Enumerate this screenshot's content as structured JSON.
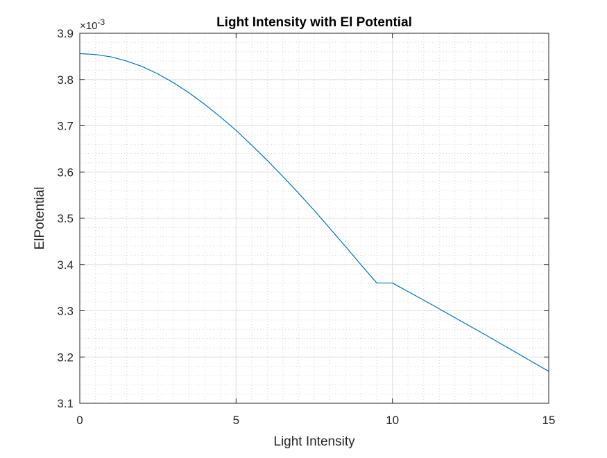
{
  "chart_data": {
    "type": "line",
    "title": "Light Intensity with El Potential",
    "xlabel": "Light Intensity",
    "ylabel": "ElPotential",
    "xlim": [
      0,
      15
    ],
    "ylim": [
      0.0031,
      0.0039
    ],
    "x_ticks": [
      0,
      5,
      10,
      15
    ],
    "x_tick_labels": [
      "0",
      "5",
      "10",
      "15"
    ],
    "y_ticks": [
      0.0031,
      0.0032,
      0.0033,
      0.0034,
      0.0035,
      0.0036,
      0.0037,
      0.0038,
      0.0039
    ],
    "y_tick_labels": [
      "3.1",
      "3.2",
      "3.3",
      "3.4",
      "3.5",
      "3.6",
      "3.7",
      "3.8",
      "3.9"
    ],
    "y_exponent_base": "×10",
    "y_exponent_power": "-3",
    "grid": true,
    "minor_grid": true,
    "series": [
      {
        "color": "#0072bd",
        "x": [
          0,
          0.5,
          1,
          1.5,
          2,
          2.5,
          3,
          3.5,
          4,
          4.5,
          5,
          5.5,
          6,
          6.5,
          7,
          7.5,
          8,
          8.5,
          9,
          9.5,
          10,
          11,
          12,
          13,
          14,
          15
        ],
        "y": [
          0.003856,
          0.003854,
          0.003849,
          0.00384,
          0.003828,
          0.003812,
          0.003793,
          0.003771,
          0.003746,
          0.003719,
          0.00369,
          0.003658,
          0.003625,
          0.00359,
          0.003554,
          0.003517,
          0.003478,
          0.003439,
          0.003399,
          0.00336,
          0.00336,
          0.003323,
          0.003285,
          0.003247,
          0.003208,
          0.003169
        ]
      }
    ]
  }
}
